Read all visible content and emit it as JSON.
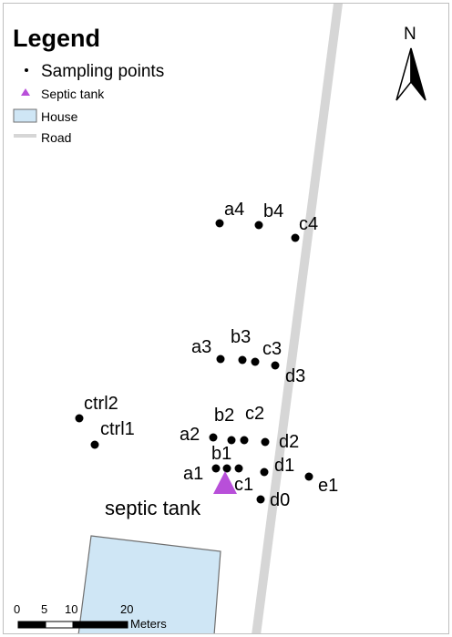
{
  "legend": {
    "title": "Legend",
    "items": [
      {
        "label": "Sampling points",
        "symbol": "dot"
      },
      {
        "label": "Septic tank",
        "symbol": "triangle"
      },
      {
        "label": "House",
        "symbol": "box"
      },
      {
        "label": "Road",
        "symbol": "line"
      }
    ]
  },
  "north_arrow": {
    "label": "N"
  },
  "tank_label": "septic tank",
  "scale_bar": {
    "ticks": [
      "0",
      "5",
      "10",
      "20"
    ],
    "unit": "Meters"
  },
  "colors": {
    "house_fill": "#cfe6f5",
    "house_stroke": "#6f6f6f",
    "road": "#d6d6d6",
    "septic_tank": "#b84fd9",
    "points": "#000000"
  },
  "sampling_points": [
    {
      "label": "a4"
    },
    {
      "label": "b4"
    },
    {
      "label": "c4"
    },
    {
      "label": "a3"
    },
    {
      "label": "b3"
    },
    {
      "label": "c3"
    },
    {
      "label": "d3"
    },
    {
      "label": "ctrl2"
    },
    {
      "label": "ctrl1"
    },
    {
      "label": "b2"
    },
    {
      "label": "c2"
    },
    {
      "label": "a2"
    },
    {
      "label": "d2"
    },
    {
      "label": "b1"
    },
    {
      "label": "a1"
    },
    {
      "label": "c1"
    },
    {
      "label": "d1"
    },
    {
      "label": "e1"
    },
    {
      "label": "d0"
    }
  ]
}
